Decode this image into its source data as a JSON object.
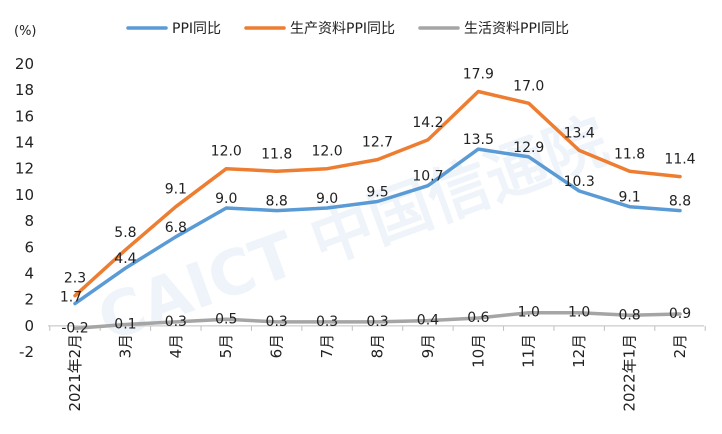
{
  "chart_data": {
    "type": "line",
    "unit_label": "(%)",
    "categories": [
      "2021年2月",
      "3月",
      "4月",
      "5月",
      "6月",
      "7月",
      "8月",
      "9月",
      "10月",
      "11月",
      "12月",
      "2022年1月",
      "2月"
    ],
    "ylim": [
      -2,
      20
    ],
    "yticks": [
      -2,
      0,
      2,
      4,
      6,
      8,
      10,
      12,
      14,
      16,
      18,
      20
    ],
    "grid": false,
    "legend_position": "top",
    "series": [
      {
        "name": "PPI同比",
        "color": "#5b9bd5",
        "values": [
          1.7,
          4.4,
          6.8,
          9.0,
          8.8,
          9.0,
          9.5,
          10.7,
          13.5,
          12.9,
          10.3,
          9.1,
          8.8
        ]
      },
      {
        "name": "生产资料PPI同比",
        "color": "#ed7d31",
        "values": [
          2.3,
          5.8,
          9.1,
          12.0,
          11.8,
          12.0,
          12.7,
          14.2,
          17.9,
          17.0,
          13.4,
          11.8,
          11.4
        ]
      },
      {
        "name": "生活资料PPI同比",
        "color": "#a5a5a5",
        "values": [
          -0.2,
          0.1,
          0.3,
          0.5,
          0.3,
          0.3,
          0.3,
          0.4,
          0.6,
          1.0,
          1.0,
          0.8,
          0.9
        ]
      }
    ],
    "watermark": "CAICT 中国信通院"
  }
}
